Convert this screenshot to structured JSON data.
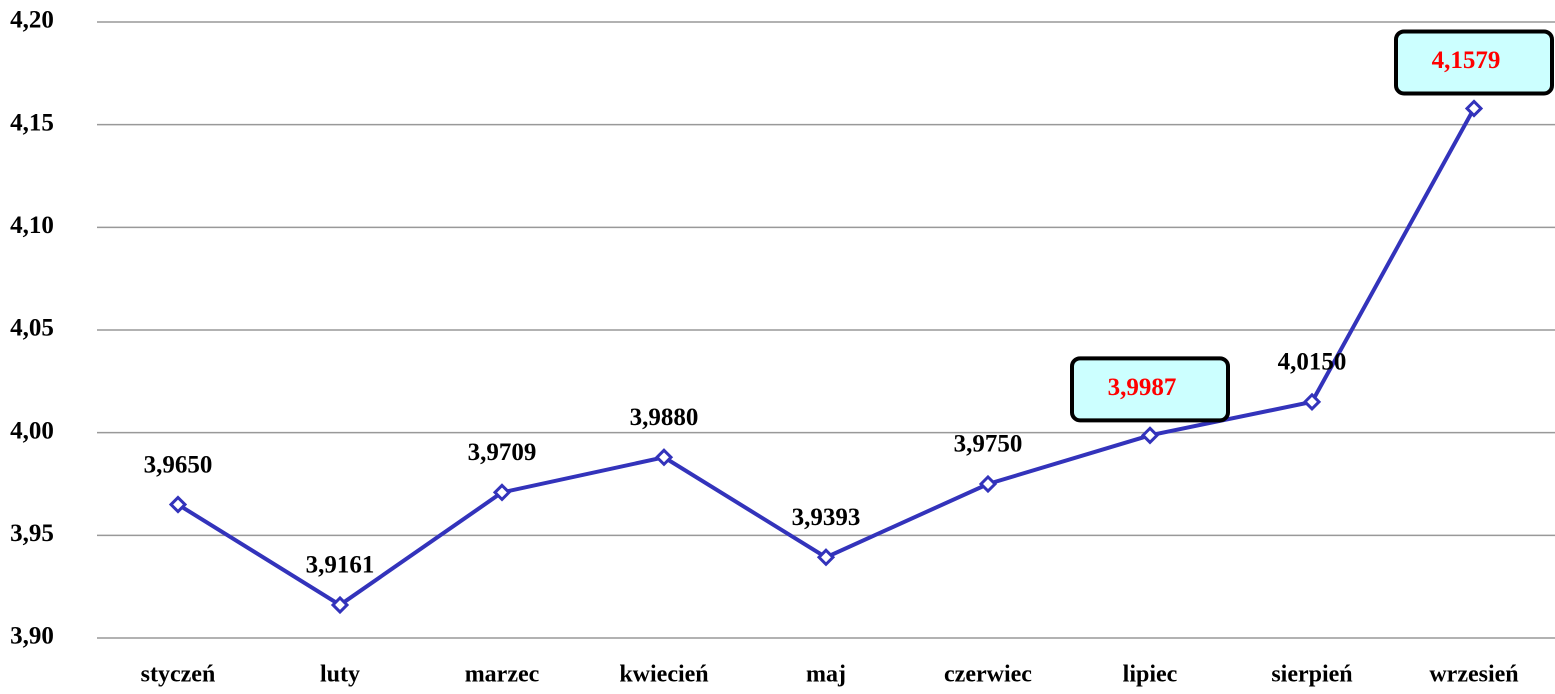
{
  "chart_data": {
    "type": "line",
    "categories": [
      "styczeń",
      "luty",
      "marzec",
      "kwiecień",
      "maj",
      "czerwiec",
      "lipiec",
      "sierpień",
      "wrzesień"
    ],
    "values": [
      3.965,
      3.9161,
      3.9709,
      3.988,
      3.9393,
      3.975,
      3.9987,
      4.015,
      4.1579
    ],
    "value_labels": [
      "3,9650",
      "3,9161",
      "3,9709",
      "3,9880",
      "3,9393",
      "3,9750",
      "3,9987",
      "4,0150",
      "4,1579"
    ],
    "value_label_colors": [
      "#000000",
      "#000000",
      "#000000",
      "#000000",
      "#000000",
      "#000000",
      "#ff0000",
      "#000000",
      "#ff0000"
    ],
    "value_label_backgrounds": [
      null,
      null,
      null,
      null,
      null,
      null,
      "#ccffff",
      null,
      "#ccffff"
    ],
    "color": "#3333bb",
    "ylim": [
      3.9,
      4.2
    ],
    "yticks": [
      {
        "value": 3.9,
        "label": "3,90"
      },
      {
        "value": 3.95,
        "label": "3,95"
      },
      {
        "value": 4.0,
        "label": "4,00"
      },
      {
        "value": 4.05,
        "label": "4,05"
      },
      {
        "value": 4.1,
        "label": "4,10"
      },
      {
        "value": 4.15,
        "label": "4,15"
      },
      {
        "value": 4.2,
        "label": "4,20"
      }
    ],
    "grid": true
  }
}
